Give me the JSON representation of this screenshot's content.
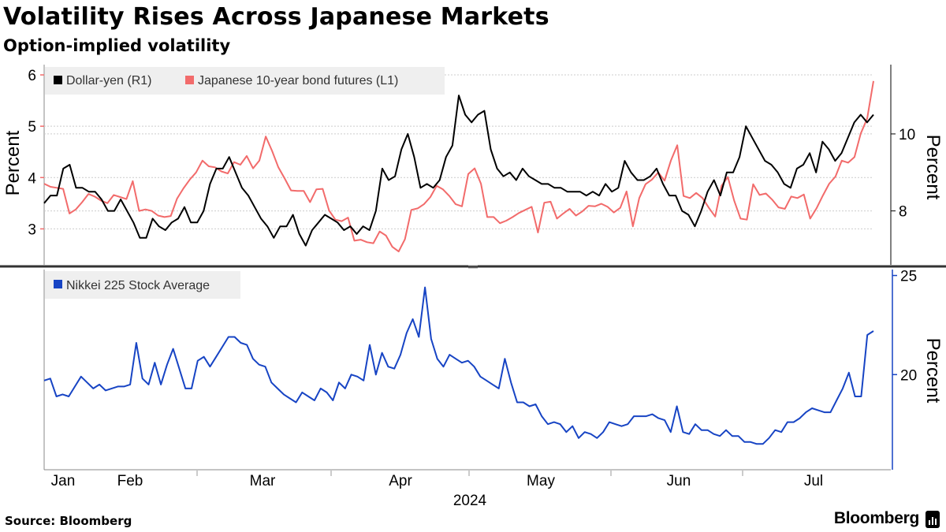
{
  "title": "Volatility Rises Across Japanese Markets",
  "subtitle": "Option-implied volatility",
  "source": "Source: Bloomberg",
  "brand": "Bloomberg",
  "colors": {
    "dollar_yen": "#000000",
    "jgb": "#f26b6b",
    "nikkei": "#1744c4",
    "legend_bg": "#efefef",
    "grid": "#cccccc",
    "separator": "#333333"
  },
  "chart_data": [
    {
      "name": "top-panel",
      "type": "line",
      "title": "",
      "xlabel": "2024",
      "x_ticks": [
        "Jan",
        "Feb",
        "Mar",
        "Apr",
        "May",
        "Jun",
        "Jul"
      ],
      "y_left": {
        "label": "Percent",
        "range": [
          2.3,
          6.2
        ],
        "ticks": [
          3,
          4,
          5,
          6
        ]
      },
      "y_right": {
        "label": "Percent",
        "range": [
          6.6,
          11.8
        ],
        "ticks": [
          8,
          10
        ]
      },
      "grid": true,
      "legend": "top-left",
      "series": [
        {
          "name": "Dollar-yen (R1)",
          "axis": "right",
          "color_key": "dollar_yen",
          "values": [
            8.2,
            8.4,
            8.4,
            9.1,
            9.2,
            8.6,
            8.6,
            8.5,
            8.5,
            8.3,
            8.0,
            8.0,
            8.3,
            8.0,
            7.7,
            7.3,
            7.3,
            7.8,
            7.6,
            7.5,
            7.7,
            7.8,
            8.1,
            7.7,
            7.7,
            8.0,
            8.7,
            9.1,
            9.1,
            9.4,
            9.0,
            8.6,
            8.4,
            8.1,
            7.8,
            7.6,
            7.3,
            7.6,
            7.6,
            7.9,
            7.4,
            7.1,
            7.5,
            7.7,
            7.9,
            7.8,
            7.7,
            7.5,
            7.6,
            7.4,
            7.6,
            7.5,
            8.0,
            9.1,
            8.8,
            8.9,
            9.6,
            10.0,
            9.4,
            8.6,
            8.7,
            8.6,
            8.8,
            9.4,
            9.7,
            11.0,
            10.5,
            10.3,
            10.5,
            10.6,
            9.6,
            9.1,
            8.9,
            9.0,
            8.8,
            9.1,
            8.9,
            8.8,
            8.7,
            8.7,
            8.6,
            8.6,
            8.5,
            8.5,
            8.5,
            8.4,
            8.5,
            8.4,
            8.7,
            8.5,
            8.6,
            9.3,
            9.0,
            8.8,
            8.8,
            8.9,
            9.1,
            8.7,
            8.4,
            8.4,
            8.0,
            7.9,
            7.6,
            8.0,
            8.5,
            8.8,
            8.4,
            9.0,
            9.0,
            9.4,
            10.2,
            9.9,
            9.6,
            9.3,
            9.2,
            9.0,
            8.7,
            8.6,
            9.1,
            9.2,
            9.5,
            9.0,
            9.8,
            9.6,
            9.3,
            9.5,
            9.9,
            10.3,
            10.5,
            10.3,
            10.5
          ]
        },
        {
          "name": "Japanese 10-year bond futures (L1)",
          "axis": "left",
          "color_key": "jgb",
          "values": [
            3.88,
            3.82,
            3.8,
            3.78,
            3.3,
            3.38,
            3.52,
            3.68,
            3.63,
            3.55,
            3.5,
            3.66,
            3.62,
            3.58,
            3.93,
            3.35,
            3.38,
            3.35,
            3.26,
            3.23,
            3.25,
            3.59,
            3.79,
            3.96,
            4.1,
            4.33,
            4.22,
            4.2,
            4.12,
            4.08,
            4.3,
            4.25,
            4.42,
            4.18,
            4.33,
            4.8,
            4.52,
            4.2,
            3.98,
            3.75,
            3.74,
            3.74,
            3.52,
            3.77,
            3.78,
            3.36,
            3.18,
            3.15,
            3.22,
            2.77,
            2.79,
            2.74,
            2.72,
            2.95,
            2.87,
            2.65,
            2.56,
            2.8,
            3.37,
            3.4,
            3.48,
            3.62,
            3.84,
            3.77,
            3.64,
            3.48,
            3.44,
            4.07,
            4.18,
            3.88,
            3.23,
            3.23,
            3.11,
            3.16,
            3.23,
            3.31,
            3.37,
            3.43,
            2.93,
            3.51,
            3.53,
            3.2,
            3.3,
            3.39,
            3.26,
            3.34,
            3.45,
            3.44,
            3.49,
            3.43,
            3.32,
            3.41,
            3.73,
            3.05,
            3.6,
            3.87,
            3.96,
            4.1,
            3.94,
            4.33,
            4.63,
            3.64,
            3.6,
            3.7,
            3.6,
            3.41,
            3.24,
            3.84,
            4.01,
            3.55,
            3.2,
            3.18,
            3.87,
            3.66,
            3.69,
            3.57,
            3.42,
            3.39,
            3.63,
            3.6,
            3.67,
            3.2,
            3.4,
            3.65,
            3.88,
            4.02,
            4.33,
            4.29,
            4.4,
            4.86,
            5.15,
            5.88
          ]
        }
      ]
    },
    {
      "name": "bottom-panel",
      "type": "line",
      "title": "",
      "xlabel": "2024",
      "x_ticks": [
        "Jan",
        "Feb",
        "Mar",
        "Apr",
        "May",
        "Jun",
        "Jul"
      ],
      "y_right": {
        "label": "Percent",
        "range": [
          15.2,
          25.3
        ],
        "ticks": [
          20,
          25
        ]
      },
      "grid": false,
      "legend": "top-left",
      "series": [
        {
          "name": "Nikkei 225 Stock Average",
          "axis": "right",
          "color_key": "nikkei",
          "values": [
            19.7,
            19.8,
            18.9,
            19.0,
            18.9,
            19.4,
            19.9,
            19.6,
            19.3,
            19.5,
            19.2,
            19.3,
            19.4,
            19.4,
            19.5,
            21.6,
            19.8,
            19.5,
            20.6,
            19.5,
            20.5,
            21.3,
            20.3,
            19.3,
            19.3,
            20.7,
            20.9,
            20.4,
            20.9,
            21.4,
            21.9,
            21.9,
            21.6,
            21.5,
            20.8,
            20.5,
            20.4,
            19.6,
            19.3,
            19.0,
            18.8,
            18.6,
            19.1,
            18.9,
            18.7,
            19.3,
            19.1,
            18.7,
            19.6,
            19.3,
            20.0,
            19.9,
            19.7,
            21.5,
            20.0,
            21.1,
            20.4,
            20.3,
            21.0,
            22.1,
            22.8,
            21.9,
            24.4,
            21.8,
            20.8,
            20.4,
            21.0,
            20.8,
            20.6,
            20.7,
            20.4,
            19.9,
            19.7,
            19.5,
            19.3,
            20.8,
            19.6,
            18.6,
            18.6,
            18.4,
            18.5,
            17.9,
            17.5,
            17.6,
            17.5,
            17.1,
            17.4,
            16.8,
            17.1,
            17.0,
            16.8,
            17.1,
            17.6,
            17.5,
            17.4,
            17.5,
            17.9,
            17.9,
            17.9,
            18.0,
            17.8,
            17.7,
            17.1,
            18.4,
            17.1,
            17.0,
            17.5,
            17.2,
            17.2,
            17.0,
            16.9,
            17.2,
            16.9,
            16.9,
            16.6,
            16.6,
            16.5,
            16.5,
            16.8,
            17.2,
            17.1,
            17.6,
            17.6,
            17.8,
            18.1,
            18.3,
            18.2,
            18.1,
            18.1,
            18.7,
            19.3,
            20.1,
            18.9,
            18.9,
            22.0,
            22.2
          ]
        }
      ]
    }
  ]
}
